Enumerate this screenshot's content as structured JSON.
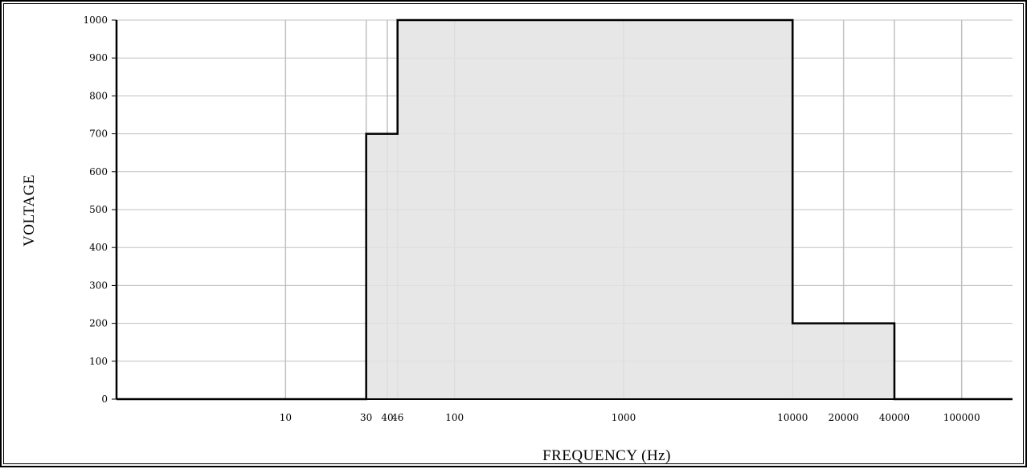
{
  "chart_data": {
    "type": "area",
    "title": "",
    "xlabel": "FREQUENCY (Hz)",
    "ylabel": "VOLTAGE",
    "x_scale": "log",
    "xlim": [
      1,
      200000
    ],
    "ylim": [
      0,
      1000
    ],
    "x_ticks": [
      {
        "value": 10,
        "label": "10"
      },
      {
        "value": 30,
        "label": "30"
      },
      {
        "value": 40,
        "label": "40"
      },
      {
        "value": 46,
        "label": "46"
      },
      {
        "value": 100,
        "label": "100"
      },
      {
        "value": 1000,
        "label": "1000"
      },
      {
        "value": 10000,
        "label": "10000"
      },
      {
        "value": 20000,
        "label": "20000"
      },
      {
        "value": 40000,
        "label": "40000"
      },
      {
        "value": 100000,
        "label": "100000"
      }
    ],
    "y_ticks": [
      {
        "value": 0,
        "label": "0"
      },
      {
        "value": 100,
        "label": "100"
      },
      {
        "value": 200,
        "label": "200"
      },
      {
        "value": 300,
        "label": "300"
      },
      {
        "value": 400,
        "label": "400"
      },
      {
        "value": 500,
        "label": "500"
      },
      {
        "value": 600,
        "label": "600"
      },
      {
        "value": 700,
        "label": "700"
      },
      {
        "value": 800,
        "label": "800"
      },
      {
        "value": 900,
        "label": "900"
      },
      {
        "value": 1000,
        "label": "1000"
      }
    ],
    "grid": true,
    "series": [
      {
        "step": true,
        "points": [
          {
            "x": 1,
            "y": 0
          },
          {
            "x": 30,
            "y": 0
          },
          {
            "x": 30,
            "y": 700
          },
          {
            "x": 46,
            "y": 700
          },
          {
            "x": 46,
            "y": 1000
          },
          {
            "x": 10000,
            "y": 1000
          },
          {
            "x": 10000,
            "y": 200
          },
          {
            "x": 40000,
            "y": 200
          },
          {
            "x": 40000,
            "y": 0
          },
          {
            "x": 200000,
            "y": 0
          }
        ]
      }
    ],
    "colors": {
      "fill": "#e3e3e3",
      "line": "#000000",
      "grid": "#c0c0c0",
      "axis": "#000000"
    }
  }
}
